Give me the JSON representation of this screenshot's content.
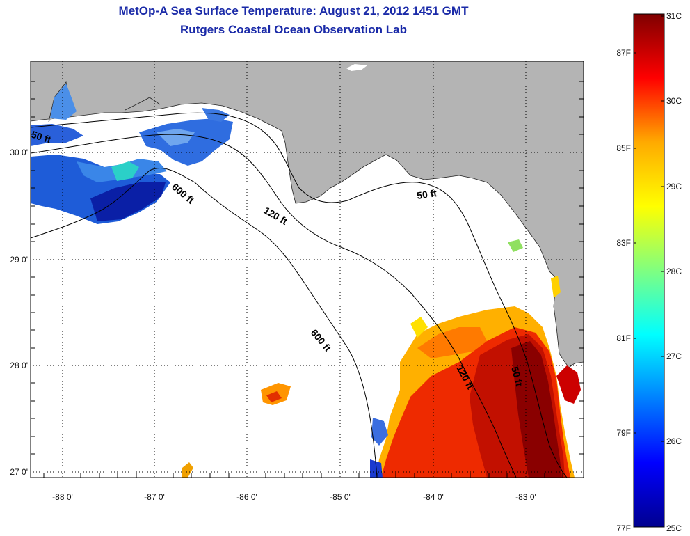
{
  "title": "MetOp-A Sea Surface Temperature:  August 21, 2012 1451 GMT",
  "subtitle": "Rutgers Coastal Ocean Observation Lab",
  "axes": {
    "lon_ticks": [
      "-88 0'",
      "-87 0'",
      "-86 0'",
      "-85 0'",
      "-84 0'",
      "-83 0'"
    ],
    "lat_ticks": [
      "30 0'",
      "29 0'",
      "28 0'",
      "27 0'"
    ]
  },
  "contours": {
    "shelf_50ft_west": "50 ft",
    "shelf_50ft_east": "50 ft",
    "shelf_50ft_south": "50 ft",
    "shelf_120ft_north": "120 ft",
    "shelf_120ft_south": "120 ft",
    "shelf_600ft_north": "600 ft",
    "shelf_600ft_south": "600 ft"
  },
  "colorbar": {
    "celsius": [
      "31C",
      "30C",
      "29C",
      "28C",
      "27C",
      "26C",
      "25C"
    ],
    "fahrenheit": [
      "87F",
      "85F",
      "83F",
      "81F",
      "79F",
      "77F"
    ],
    "colors": [
      "#7f0000",
      "#ff0000",
      "#ffaa00",
      "#ffff00",
      "#80ff80",
      "#00ffff",
      "#0080ff",
      "#0000ff",
      "#00008f"
    ]
  },
  "palette": {
    "land": "#b4b4b4",
    "ocean": "#ffffff",
    "title": "#1a2aa8"
  }
}
